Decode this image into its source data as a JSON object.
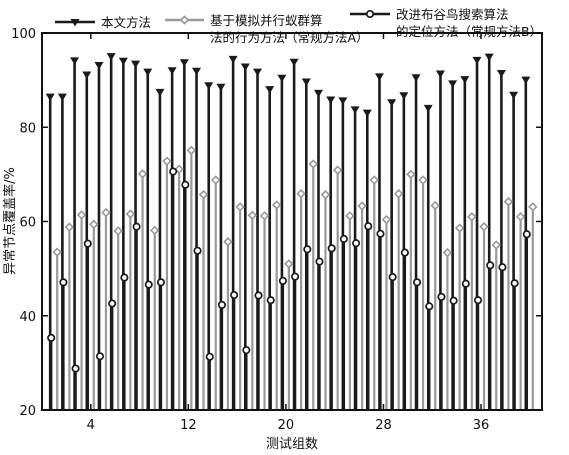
{
  "chart_data": {
    "type": "stem",
    "xlabel": "测试组数",
    "ylabel": "异常节点覆盖率/%",
    "xlim": [
      0,
      41
    ],
    "ylim": [
      20,
      100
    ],
    "xticks": [
      4,
      12,
      20,
      28,
      36
    ],
    "yticks": [
      20,
      40,
      60,
      80,
      100
    ],
    "legend_position": "top",
    "x": [
      1,
      2,
      3,
      4,
      5,
      6,
      7,
      8,
      9,
      10,
      11,
      12,
      13,
      14,
      15,
      16,
      17,
      18,
      19,
      20,
      21,
      22,
      23,
      24,
      25,
      26,
      27,
      28,
      29,
      30,
      31,
      32,
      33,
      34,
      35,
      36,
      37,
      38,
      39,
      40
    ],
    "series": [
      {
        "name": "本文方法",
        "color": "#1a1a1a",
        "marker": "triangle-down",
        "values": [
          86.5,
          86.5,
          94.2,
          91.2,
          93.2,
          95.1,
          94.1,
          93.5,
          91.8,
          87.5,
          92.1,
          93.8,
          92.0,
          88.9,
          88.6,
          94.5,
          92.9,
          91.8,
          88.1,
          90.5,
          93.9,
          89.7,
          87.3,
          85.9,
          85.7,
          83.8,
          83.1,
          90.8,
          85.3,
          86.8,
          90.6,
          84.1,
          91.4,
          89.3,
          90.2,
          94.3,
          95.0,
          91.5,
          86.9,
          90.1
        ]
      },
      {
        "name": "基于模拟并行蚁群算法的行为方法（常规方法A）",
        "color": "#999999",
        "marker": "diamond",
        "values": [
          53.5,
          58.8,
          61.4,
          59.4,
          61.9,
          58.0,
          61.6,
          70.1,
          58.1,
          72.8,
          71.1,
          75.1,
          65.7,
          68.8,
          55.7,
          63.1,
          61.3,
          61.2,
          63.5,
          51.0,
          65.9,
          72.2,
          65.7,
          70.9,
          61.2,
          63.3,
          68.8,
          60.4,
          65.9,
          70.0,
          68.8,
          63.4,
          53.4,
          58.6,
          61.0,
          58.9,
          55.0,
          64.2,
          61.0,
          63.1
        ]
      },
      {
        "name": "改进布谷鸟搜索算法的定位方法（常规方法B）",
        "color": "#1a1a1a",
        "marker": "circle",
        "values": [
          35.3,
          47.1,
          28.8,
          55.3,
          31.4,
          42.6,
          48.1,
          58.9,
          46.6,
          47.1,
          70.6,
          67.8,
          53.8,
          31.3,
          42.3,
          44.4,
          32.7,
          44.3,
          43.3,
          47.4,
          48.3,
          54.1,
          51.5,
          54.3,
          56.3,
          55.4,
          59.0,
          57.4,
          48.2,
          53.4,
          47.1,
          42.0,
          44.0,
          43.2,
          46.8,
          43.3,
          50.7,
          50.3,
          46.9,
          57.3
        ]
      }
    ]
  }
}
